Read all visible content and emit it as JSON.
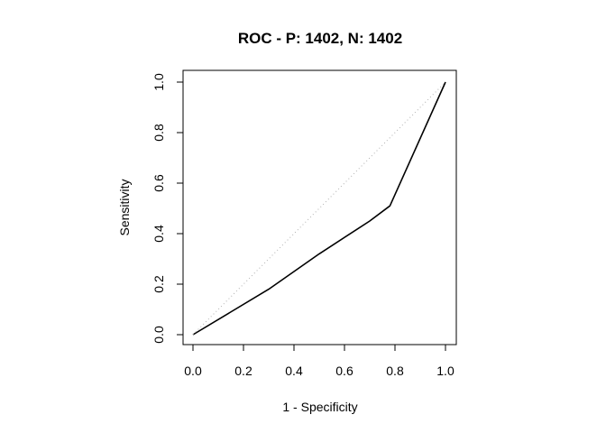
{
  "chart_data": {
    "type": "line",
    "title": "ROC - P: 1402, N: 1402",
    "xlabel": "1 - Specificity",
    "ylabel": "Sensitivity",
    "xlim": [
      0,
      1
    ],
    "ylim": [
      0,
      1
    ],
    "x_ticks": [
      "0.0",
      "0.2",
      "0.4",
      "0.6",
      "0.8",
      "1.0"
    ],
    "y_ticks": [
      "0.0",
      "0.2",
      "0.4",
      "0.6",
      "0.8",
      "1.0"
    ],
    "grid": false,
    "legend": "none",
    "series": [
      {
        "style": "solid",
        "color": "#000000",
        "x": [
          0.0,
          0.3,
          0.5,
          0.7,
          0.78,
          1.0
        ],
        "y": [
          0.0,
          0.18,
          0.32,
          0.45,
          0.51,
          1.0
        ]
      },
      {
        "style": "dotted",
        "color": "#b0b0b0",
        "x": [
          0.0,
          1.0
        ],
        "y": [
          0.0,
          1.0
        ]
      }
    ]
  }
}
